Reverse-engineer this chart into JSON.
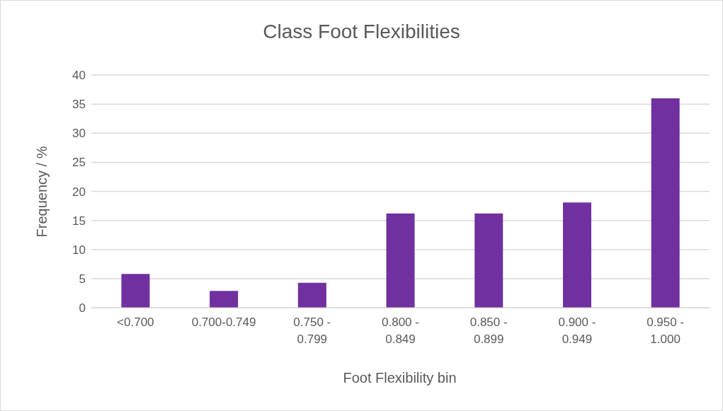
{
  "chart_data": {
    "type": "bar",
    "title": "Class Foot Flexibilities",
    "xlabel": "Foot Flexibility bin",
    "ylabel": "Frequency / %",
    "categories": [
      "<0.700",
      "0.700-0.749",
      "0.750 - 0.799",
      "0.800 - 0.849",
      "0.850 - 0.899",
      "0.900 - 0.949",
      "0.950 - 1.000"
    ],
    "values": [
      5.8,
      2.9,
      4.3,
      16.2,
      16.2,
      18.1,
      36
    ],
    "color": "#7030a0",
    "ylim": [
      0,
      40
    ],
    "yticks": [
      0,
      5,
      10,
      15,
      20,
      25,
      30,
      35,
      40
    ],
    "grid": "y"
  }
}
